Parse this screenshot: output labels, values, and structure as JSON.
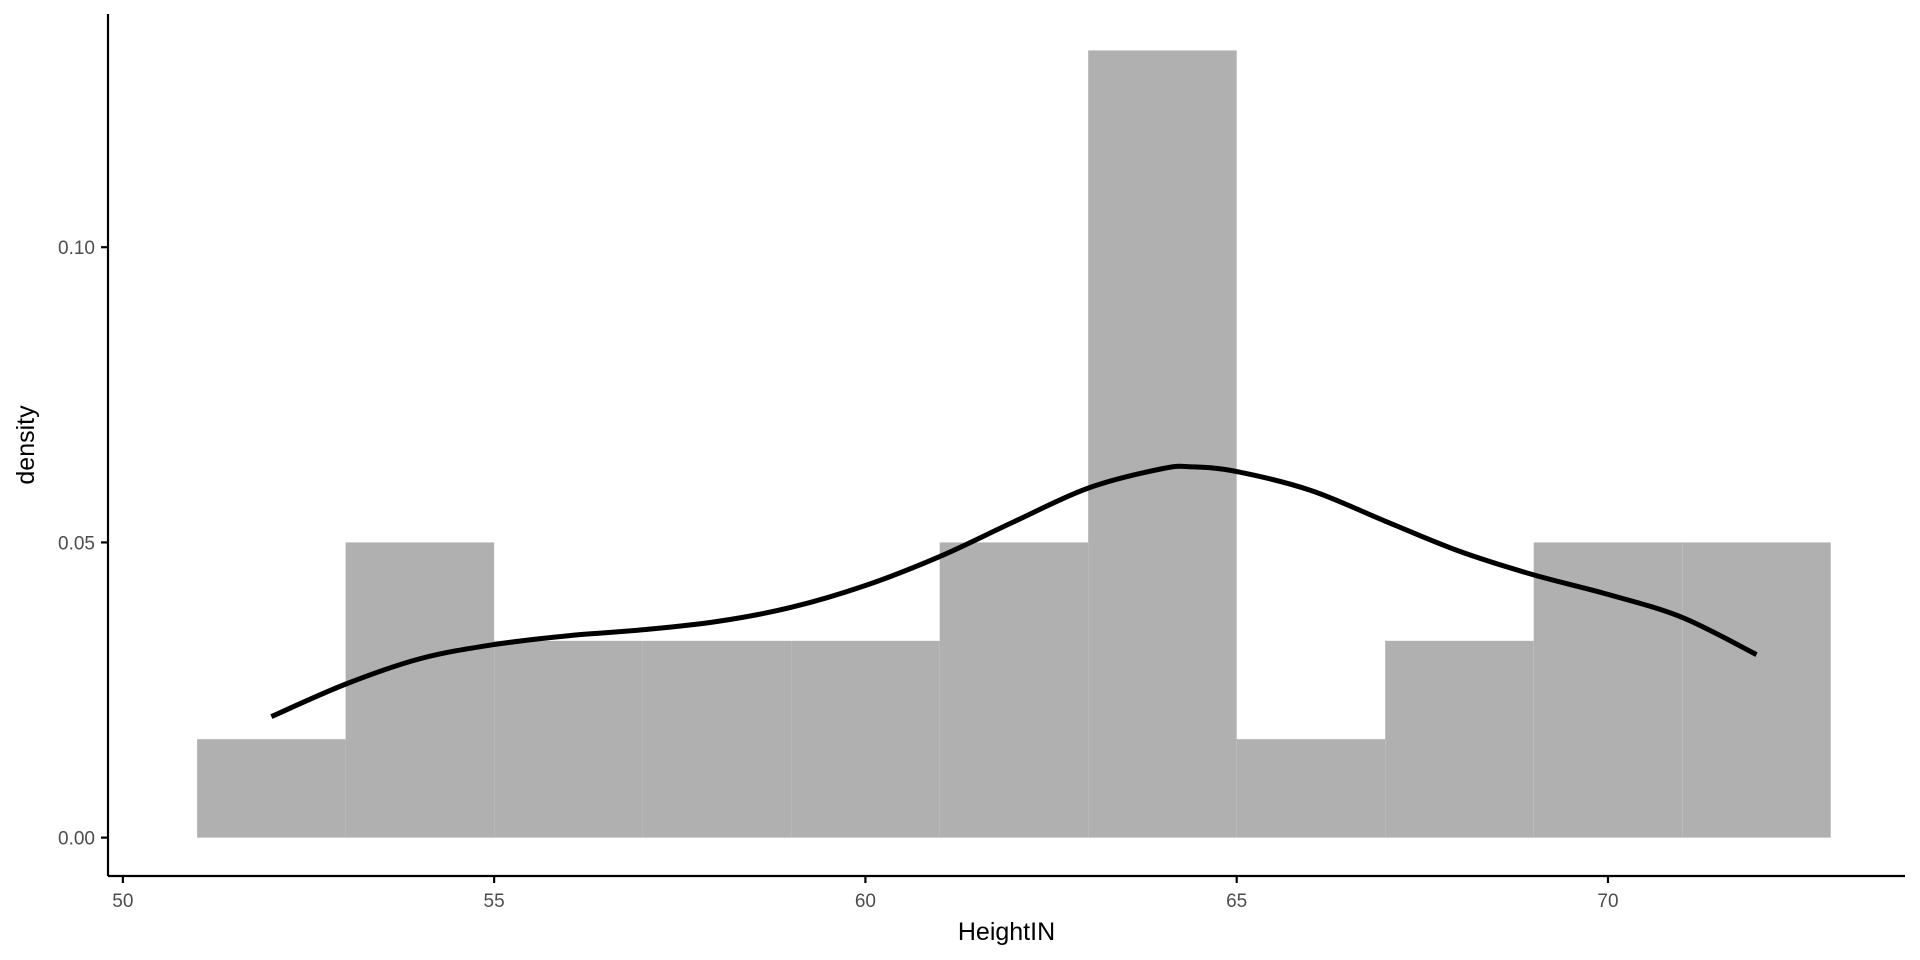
{
  "chart_data": {
    "type": "bar",
    "subtype": "histogram with density curve",
    "title": "",
    "xlabel": "HeightIN",
    "ylabel": "density",
    "xlim": [
      49.8,
      74.0
    ],
    "ylim": [
      -0.0065,
      0.1395
    ],
    "x_ticks": [
      50,
      55,
      60,
      65,
      70
    ],
    "x_tick_labels": [
      "50",
      "55",
      "60",
      "65",
      "70"
    ],
    "y_ticks": [
      0.0,
      0.05,
      0.1
    ],
    "y_tick_labels": [
      "0.00",
      "0.05",
      "0.10"
    ],
    "grid": false,
    "legend": "none",
    "bins": [
      {
        "x0": 51,
        "x1": 53,
        "density": 0.01667
      },
      {
        "x0": 53,
        "x1": 55,
        "density": 0.05
      },
      {
        "x0": 55,
        "x1": 57,
        "density": 0.03333
      },
      {
        "x0": 57,
        "x1": 59,
        "density": 0.03333
      },
      {
        "x0": 59,
        "x1": 61,
        "density": 0.03333
      },
      {
        "x0": 61,
        "x1": 63,
        "density": 0.05
      },
      {
        "x0": 63,
        "x1": 65,
        "density": 0.13333
      },
      {
        "x0": 65,
        "x1": 67,
        "density": 0.01667
      },
      {
        "x0": 67,
        "x1": 69,
        "density": 0.03333
      },
      {
        "x0": 69,
        "x1": 71,
        "density": 0.05
      },
      {
        "x0": 71,
        "x1": 73,
        "density": 0.05
      }
    ],
    "density_curve": {
      "x": [
        52,
        53,
        54,
        55,
        56,
        57,
        58,
        59,
        60,
        61,
        62,
        63,
        64,
        64.4,
        65,
        66,
        67,
        68,
        69,
        70,
        71,
        72
      ],
      "y": [
        0.0205,
        0.026,
        0.0303,
        0.0327,
        0.0342,
        0.0352,
        0.0366,
        0.039,
        0.0427,
        0.0476,
        0.0535,
        0.0592,
        0.0625,
        0.0628,
        0.062,
        0.0588,
        0.0536,
        0.0485,
        0.0445,
        0.0412,
        0.0373,
        0.031
      ]
    },
    "colors": {
      "bars": "#b0b0b0",
      "curve": "#000000",
      "axis": "#000000",
      "tick_text": "#4d4d4d"
    }
  }
}
